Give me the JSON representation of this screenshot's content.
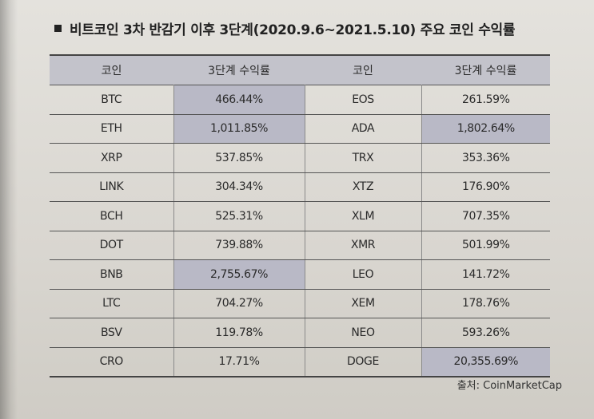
{
  "title": "비트코인 3차 반감기 이후 3단계(2020.9.6~2021.5.10) 주요 코인 수익률",
  "header": {
    "coin_left": "코인",
    "return_left": "3단계 수익률",
    "coin_right": "코인",
    "return_right": "3단계 수익률"
  },
  "highlight_color": "#b9b9c6",
  "rows": [
    {
      "coin_left": "BTC",
      "return_left": "466.44%",
      "coin_right": "EOS",
      "return_right": "261.59%"
    },
    {
      "coin_left": "ETH",
      "return_left": "1,011.85%",
      "coin_right": "ADA",
      "return_right": "1,802.64%"
    },
    {
      "coin_left": "XRP",
      "return_left": "537.85%",
      "coin_right": "TRX",
      "return_right": "353.36%"
    },
    {
      "coin_left": "LINK",
      "return_left": "304.34%",
      "coin_right": "XTZ",
      "return_right": "176.90%"
    },
    {
      "coin_left": "BCH",
      "return_left": "525.31%",
      "coin_right": "XLM",
      "return_right": "707.35%"
    },
    {
      "coin_left": "DOT",
      "return_left": "739.88%",
      "coin_right": "XMR",
      "return_right": "501.99%"
    },
    {
      "coin_left": "BNB",
      "return_left": "2,755.67%",
      "coin_right": "LEO",
      "return_right": "141.72%"
    },
    {
      "coin_left": "LTC",
      "return_left": "704.27%",
      "coin_right": "XEM",
      "return_right": "178.76%"
    },
    {
      "coin_left": "BSV",
      "return_left": "119.78%",
      "coin_right": "NEO",
      "return_right": "593.26%"
    },
    {
      "coin_left": "CRO",
      "return_left": "17.71%",
      "coin_right": "DOGE",
      "return_right": "20,355.69%"
    }
  ],
  "source": "출처: CoinMarketCap"
}
